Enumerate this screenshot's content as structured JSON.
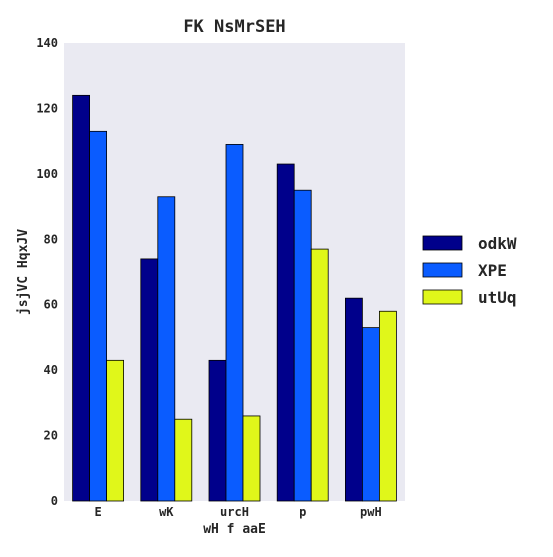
{
  "chart_data": {
    "type": "bar",
    "title": "FK NsMrSEH",
    "xlabel": "wH f aaE",
    "ylabel": "jsjVC HqxJV",
    "categories": [
      "E",
      "wK",
      "urcH",
      "p",
      "pwH"
    ],
    "series": [
      {
        "name": "odkW",
        "color": "#00008b",
        "values": [
          124,
          74,
          43,
          103,
          62
        ]
      },
      {
        "name": "XPE",
        "color": "#0a5cff",
        "values": [
          113,
          93,
          109,
          95,
          53
        ]
      },
      {
        "name": "utUq",
        "color": "#e0f71a",
        "values": [
          43,
          25,
          26,
          77,
          58
        ]
      }
    ],
    "ylim": [
      0,
      140
    ],
    "yticks": [
      0,
      20,
      40,
      60,
      80,
      100,
      120,
      140
    ],
    "grid": false,
    "legend_position": "right",
    "plot_background": "#eaeaf2"
  }
}
